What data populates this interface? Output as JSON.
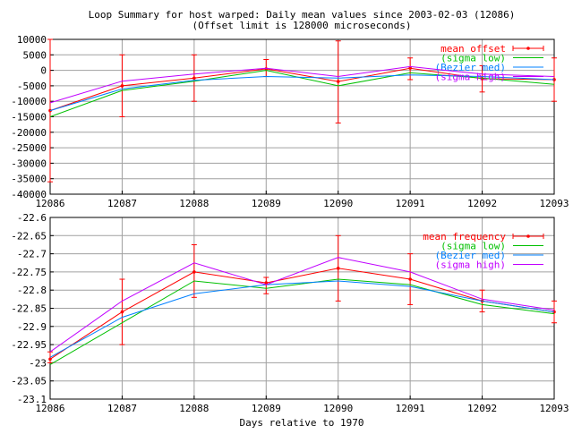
{
  "title_line1": "Loop Summary for host warped: Daily mean values since 2003-02-03 (12086)",
  "title_line2": "(Offset limit is 128000 microseconds)",
  "xlabel": "Days relative to 1970",
  "colors": {
    "mean": "#ff0000",
    "sigma_low": "#00c000",
    "bezier_med": "#0080ff",
    "sigma_high": "#c000ff",
    "grid": "#a0a0a0",
    "axis": "#000000"
  },
  "chart_data": [
    {
      "type": "line",
      "title": "Loop Summary for host warped: Daily mean values since 2003-02-03 (12086)",
      "subtitle": "(Offset limit is 128000 microseconds)",
      "xlabel": "",
      "ylabel": "",
      "xlim": [
        12086,
        12093
      ],
      "ylim": [
        -40000,
        10000
      ],
      "xticks": [
        12086,
        12087,
        12088,
        12089,
        12090,
        12091,
        12092,
        12093
      ],
      "yticks": [
        10000,
        5000,
        0,
        -5000,
        -10000,
        -15000,
        -20000,
        -25000,
        -30000,
        -35000,
        -40000
      ],
      "grid": true,
      "legend_position": "top-right",
      "x": [
        12086,
        12087,
        12088,
        12089,
        12090,
        12091,
        12092,
        12093
      ],
      "series": [
        {
          "name": "mean offset",
          "kind": "errorbar",
          "color": "#ff0000",
          "values": [
            -13000,
            -5000,
            -2500,
            500,
            -3600,
            700,
            -2700,
            -3000
          ],
          "err_low": [
            -36000,
            -15000,
            -10000,
            -2000,
            -17000,
            -3000,
            -7000,
            -10000
          ],
          "err_high": [
            10000,
            5000,
            5000,
            3500,
            9500,
            4000,
            1500,
            4000
          ]
        },
        {
          "name": "(sigma low)",
          "kind": "line",
          "color": "#00c000",
          "values": [
            -15000,
            -6500,
            -3500,
            0,
            -5000,
            -800,
            -2500,
            -4500
          ]
        },
        {
          "name": "(Bezier med)",
          "kind": "line",
          "color": "#0080ff",
          "values": [
            -13000,
            -6000,
            -3200,
            -2000,
            -2500,
            -1500,
            -2000,
            -3000
          ]
        },
        {
          "name": "(sigma high)",
          "kind": "line",
          "color": "#c000ff",
          "values": [
            -10500,
            -3500,
            -1200,
            700,
            -2000,
            1200,
            -1200,
            -2000
          ]
        }
      ]
    },
    {
      "type": "line",
      "title": "",
      "xlabel": "Days relative to 1970",
      "ylabel": "",
      "xlim": [
        12086,
        12093
      ],
      "ylim": [
        -23.1,
        -22.6
      ],
      "xticks": [
        12086,
        12087,
        12088,
        12089,
        12090,
        12091,
        12092,
        12093
      ],
      "yticks": [
        -22.6,
        -22.65,
        -22.7,
        -22.75,
        -22.8,
        -22.85,
        -22.9,
        -22.95,
        -23,
        -23.05,
        -23.1
      ],
      "grid": true,
      "legend_position": "top-right",
      "x": [
        12086,
        12087,
        12088,
        12089,
        12090,
        12091,
        12092,
        12093
      ],
      "series": [
        {
          "name": "mean frequency",
          "kind": "errorbar",
          "color": "#ff0000",
          "values": [
            -22.99,
            -22.86,
            -22.75,
            -22.78,
            -22.74,
            -22.77,
            -22.83,
            -22.86
          ],
          "err_low": [
            -23.0,
            -22.95,
            -22.82,
            -22.81,
            -22.83,
            -22.84,
            -22.86,
            -22.89
          ],
          "err_high": [
            -22.97,
            -22.77,
            -22.675,
            -22.765,
            -22.65,
            -22.7,
            -22.8,
            -22.83
          ]
        },
        {
          "name": "(sigma low)",
          "kind": "line",
          "color": "#00c000",
          "values": [
            -23.005,
            -22.89,
            -22.775,
            -22.795,
            -22.77,
            -22.785,
            -22.84,
            -22.865
          ]
        },
        {
          "name": "(Bezier med)",
          "kind": "line",
          "color": "#0080ff",
          "values": [
            -22.985,
            -22.875,
            -22.81,
            -22.785,
            -22.775,
            -22.79,
            -22.83,
            -22.86
          ]
        },
        {
          "name": "(sigma high)",
          "kind": "line",
          "color": "#c000ff",
          "values": [
            -22.97,
            -22.83,
            -22.725,
            -22.785,
            -22.71,
            -22.75,
            -22.825,
            -22.855
          ]
        }
      ]
    }
  ]
}
